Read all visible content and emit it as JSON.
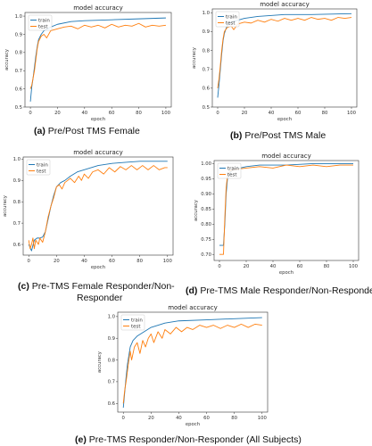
{
  "colors": {
    "train": "#1f77b4",
    "test": "#ff7f0e"
  },
  "captions": [
    {
      "letter": "(a)",
      "text": " Pre/Post TMS Female"
    },
    {
      "letter": "(b)",
      "text": "  Pre/Post TMS Male"
    },
    {
      "letter": "(c)",
      "text": " Pre-TMS Female Responder/Non-"
    },
    {
      "letter": "",
      "text": "Responder"
    },
    {
      "letter": "(d)",
      "text": " Pre-TMS Male Responder/Non-Responder"
    },
    {
      "letter": "(e)",
      "text": " Pre-TMS Responder/Non-Responder (All Subjects)"
    }
  ],
  "chart_data": [
    {
      "type": "line",
      "title": "model accuracy",
      "xlabel": "epoch",
      "ylabel": "accuracy",
      "legend": "upper-left",
      "grid": false,
      "xlim": [
        -4,
        104
      ],
      "ylim": [
        0.5,
        1.02
      ],
      "xticks": [
        0,
        20,
        40,
        60,
        80,
        100
      ],
      "yticks": [
        0.5,
        0.6,
        0.7,
        0.8,
        0.9,
        1.0
      ],
      "ytick_labels": [
        "0.5",
        "0.6",
        "0.7",
        "0.8",
        "0.9",
        "1.0"
      ],
      "series": [
        {
          "name": "train",
          "points": [
            [
              0,
              0.53
            ],
            [
              1,
              0.61
            ],
            [
              2,
              0.66
            ],
            [
              3,
              0.72
            ],
            [
              4,
              0.78
            ],
            [
              5,
              0.83
            ],
            [
              6,
              0.87
            ],
            [
              8,
              0.9
            ],
            [
              10,
              0.92
            ],
            [
              15,
              0.94
            ],
            [
              20,
              0.955
            ],
            [
              30,
              0.97
            ],
            [
              40,
              0.975
            ],
            [
              60,
              0.98
            ],
            [
              80,
              0.985
            ],
            [
              100,
              0.99
            ]
          ]
        },
        {
          "name": "test",
          "points": [
            [
              0,
              0.6
            ],
            [
              1,
              0.62
            ],
            [
              2,
              0.66
            ],
            [
              3,
              0.7
            ],
            [
              4,
              0.76
            ],
            [
              5,
              0.82
            ],
            [
              6,
              0.86
            ],
            [
              8,
              0.89
            ],
            [
              10,
              0.9
            ],
            [
              12,
              0.88
            ],
            [
              15,
              0.92
            ],
            [
              20,
              0.93
            ],
            [
              25,
              0.94
            ],
            [
              30,
              0.945
            ],
            [
              35,
              0.93
            ],
            [
              40,
              0.95
            ],
            [
              45,
              0.94
            ],
            [
              50,
              0.95
            ],
            [
              55,
              0.935
            ],
            [
              60,
              0.955
            ],
            [
              65,
              0.94
            ],
            [
              70,
              0.95
            ],
            [
              75,
              0.945
            ],
            [
              80,
              0.96
            ],
            [
              85,
              0.94
            ],
            [
              90,
              0.95
            ],
            [
              95,
              0.945
            ],
            [
              100,
              0.95
            ]
          ]
        }
      ]
    },
    {
      "type": "line",
      "title": "model accuracy",
      "xlabel": "epoch",
      "ylabel": "accuracy",
      "legend": "upper-left",
      "grid": false,
      "xlim": [
        -4,
        104
      ],
      "ylim": [
        0.5,
        1.02
      ],
      "xticks": [
        0,
        20,
        40,
        60,
        80,
        100
      ],
      "yticks": [
        0.5,
        0.6,
        0.7,
        0.8,
        0.9,
        1.0
      ],
      "ytick_labels": [
        "0.5",
        "0.6",
        "0.7",
        "0.8",
        "0.9",
        "1.0"
      ],
      "series": [
        {
          "name": "train",
          "points": [
            [
              0,
              0.55
            ],
            [
              1,
              0.62
            ],
            [
              2,
              0.7
            ],
            [
              3,
              0.78
            ],
            [
              4,
              0.85
            ],
            [
              5,
              0.89
            ],
            [
              7,
              0.93
            ],
            [
              10,
              0.95
            ],
            [
              15,
              0.96
            ],
            [
              20,
              0.97
            ],
            [
              30,
              0.98
            ],
            [
              50,
              0.99
            ],
            [
              70,
              0.99
            ],
            [
              100,
              0.995
            ]
          ]
        },
        {
          "name": "test",
          "points": [
            [
              0,
              0.6
            ],
            [
              1,
              0.65
            ],
            [
              2,
              0.72
            ],
            [
              3,
              0.8
            ],
            [
              4,
              0.86
            ],
            [
              5,
              0.9
            ],
            [
              7,
              0.92
            ],
            [
              10,
              0.93
            ],
            [
              12,
              0.91
            ],
            [
              15,
              0.94
            ],
            [
              20,
              0.95
            ],
            [
              25,
              0.945
            ],
            [
              30,
              0.96
            ],
            [
              35,
              0.95
            ],
            [
              40,
              0.965
            ],
            [
              45,
              0.955
            ],
            [
              50,
              0.97
            ],
            [
              55,
              0.96
            ],
            [
              60,
              0.97
            ],
            [
              65,
              0.96
            ],
            [
              70,
              0.975
            ],
            [
              75,
              0.965
            ],
            [
              80,
              0.97
            ],
            [
              85,
              0.96
            ],
            [
              90,
              0.975
            ],
            [
              95,
              0.97
            ],
            [
              100,
              0.975
            ]
          ]
        }
      ]
    },
    {
      "type": "line",
      "title": "model accuracy",
      "xlabel": "epoch",
      "ylabel": "accuracy",
      "legend": "upper-left",
      "grid": false,
      "xlim": [
        -4,
        104
      ],
      "ylim": [
        0.55,
        1.01
      ],
      "xticks": [
        0,
        20,
        40,
        60,
        80,
        100
      ],
      "yticks": [
        0.6,
        0.7,
        0.8,
        0.9,
        1.0
      ],
      "ytick_labels": [
        "0.6",
        "0.7",
        "0.8",
        "0.9",
        "1.0"
      ],
      "series": [
        {
          "name": "train",
          "points": [
            [
              0,
              0.6
            ],
            [
              2,
              0.57
            ],
            [
              4,
              0.62
            ],
            [
              6,
              0.63
            ],
            [
              8,
              0.63
            ],
            [
              10,
              0.635
            ],
            [
              12,
              0.66
            ],
            [
              14,
              0.72
            ],
            [
              16,
              0.78
            ],
            [
              18,
              0.83
            ],
            [
              20,
              0.87
            ],
            [
              23,
              0.89
            ],
            [
              26,
              0.9
            ],
            [
              30,
              0.92
            ],
            [
              35,
              0.94
            ],
            [
              40,
              0.95
            ],
            [
              50,
              0.97
            ],
            [
              60,
              0.98
            ],
            [
              70,
              0.985
            ],
            [
              80,
              0.99
            ],
            [
              90,
              0.99
            ],
            [
              100,
              0.99
            ]
          ]
        },
        {
          "name": "test",
          "points": [
            [
              0,
              0.62
            ],
            [
              1,
              0.58
            ],
            [
              2,
              0.6
            ],
            [
              3,
              0.63
            ],
            [
              4,
              0.58
            ],
            [
              5,
              0.62
            ],
            [
              7,
              0.6
            ],
            [
              8,
              0.63
            ],
            [
              10,
              0.61
            ],
            [
              12,
              0.66
            ],
            [
              14,
              0.73
            ],
            [
              16,
              0.78
            ],
            [
              18,
              0.82
            ],
            [
              20,
              0.87
            ],
            [
              22,
              0.88
            ],
            [
              24,
              0.86
            ],
            [
              26,
              0.89
            ],
            [
              28,
              0.9
            ],
            [
              30,
              0.91
            ],
            [
              33,
              0.89
            ],
            [
              36,
              0.92
            ],
            [
              38,
              0.9
            ],
            [
              40,
              0.93
            ],
            [
              43,
              0.91
            ],
            [
              46,
              0.94
            ],
            [
              50,
              0.95
            ],
            [
              54,
              0.93
            ],
            [
              58,
              0.96
            ],
            [
              62,
              0.94
            ],
            [
              66,
              0.965
            ],
            [
              70,
              0.95
            ],
            [
              74,
              0.97
            ],
            [
              78,
              0.95
            ],
            [
              82,
              0.97
            ],
            [
              86,
              0.95
            ],
            [
              90,
              0.97
            ],
            [
              94,
              0.95
            ],
            [
              98,
              0.96
            ],
            [
              100,
              0.96
            ]
          ]
        }
      ]
    },
    {
      "type": "line",
      "title": "model accuracy",
      "xlabel": "epoch",
      "ylabel": "accuracy",
      "legend": "upper-left",
      "grid": false,
      "xlim": [
        -4,
        104
      ],
      "ylim": [
        0.68,
        1.01
      ],
      "xticks": [
        0,
        20,
        40,
        60,
        80,
        100
      ],
      "yticks": [
        0.7,
        0.75,
        0.8,
        0.85,
        0.9,
        0.95,
        1.0
      ],
      "ytick_labels": [
        "0.70",
        "0.75",
        "0.80",
        "0.85",
        "0.90",
        "0.95",
        "1.00"
      ],
      "series": [
        {
          "name": "train",
          "points": [
            [
              0,
              0.73
            ],
            [
              3,
              0.73
            ],
            [
              4,
              0.8
            ],
            [
              5,
              0.9
            ],
            [
              6,
              0.95
            ],
            [
              8,
              0.97
            ],
            [
              10,
              0.98
            ],
            [
              20,
              0.99
            ],
            [
              30,
              0.995
            ],
            [
              50,
              0.995
            ],
            [
              70,
              1.0
            ],
            [
              100,
              1.0
            ]
          ]
        },
        {
          "name": "test",
          "points": [
            [
              0,
              0.7
            ],
            [
              3,
              0.7
            ],
            [
              4,
              0.82
            ],
            [
              5,
              0.92
            ],
            [
              6,
              0.96
            ],
            [
              8,
              0.975
            ],
            [
              10,
              0.98
            ],
            [
              20,
              0.985
            ],
            [
              30,
              0.99
            ],
            [
              40,
              0.985
            ],
            [
              50,
              0.995
            ],
            [
              60,
              0.99
            ],
            [
              70,
              0.995
            ],
            [
              80,
              0.99
            ],
            [
              90,
              0.995
            ],
            [
              100,
              0.995
            ]
          ]
        }
      ]
    },
    {
      "type": "line",
      "title": "model accuracy",
      "xlabel": "epoch",
      "ylabel": "accuracy",
      "legend": "upper-left",
      "grid": false,
      "xlim": [
        -4,
        104
      ],
      "ylim": [
        0.56,
        1.02
      ],
      "xticks": [
        0,
        20,
        40,
        60,
        80,
        100
      ],
      "yticks": [
        0.6,
        0.7,
        0.8,
        0.9,
        1.0
      ],
      "ytick_labels": [
        "0.6",
        "0.7",
        "0.8",
        "0.9",
        "1.0"
      ],
      "series": [
        {
          "name": "train",
          "points": [
            [
              0,
              0.58
            ],
            [
              1,
              0.65
            ],
            [
              2,
              0.72
            ],
            [
              3,
              0.78
            ],
            [
              4,
              0.82
            ],
            [
              5,
              0.86
            ],
            [
              7,
              0.89
            ],
            [
              10,
              0.91
            ],
            [
              15,
              0.93
            ],
            [
              20,
              0.95
            ],
            [
              30,
              0.97
            ],
            [
              40,
              0.98
            ],
            [
              60,
              0.985
            ],
            [
              80,
              0.99
            ],
            [
              100,
              0.995
            ]
          ]
        },
        {
          "name": "test",
          "points": [
            [
              0,
              0.6
            ],
            [
              1,
              0.66
            ],
            [
              2,
              0.7
            ],
            [
              3,
              0.75
            ],
            [
              4,
              0.8
            ],
            [
              5,
              0.84
            ],
            [
              6,
              0.8
            ],
            [
              8,
              0.86
            ],
            [
              10,
              0.88
            ],
            [
              12,
              0.83
            ],
            [
              14,
              0.89
            ],
            [
              16,
              0.86
            ],
            [
              18,
              0.9
            ],
            [
              20,
              0.92
            ],
            [
              22,
              0.88
            ],
            [
              25,
              0.93
            ],
            [
              28,
              0.9
            ],
            [
              30,
              0.94
            ],
            [
              34,
              0.92
            ],
            [
              38,
              0.95
            ],
            [
              42,
              0.93
            ],
            [
              46,
              0.95
            ],
            [
              50,
              0.94
            ],
            [
              55,
              0.96
            ],
            [
              60,
              0.95
            ],
            [
              65,
              0.96
            ],
            [
              70,
              0.945
            ],
            [
              75,
              0.96
            ],
            [
              80,
              0.95
            ],
            [
              85,
              0.965
            ],
            [
              90,
              0.95
            ],
            [
              95,
              0.965
            ],
            [
              100,
              0.96
            ]
          ]
        }
      ]
    }
  ]
}
